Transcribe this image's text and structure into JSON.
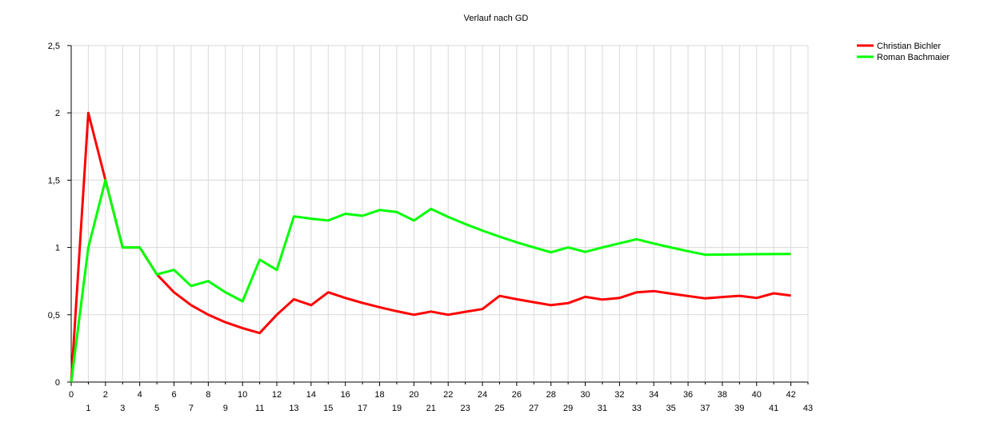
{
  "chart_data": {
    "type": "line",
    "title": "Verlauf nach GD",
    "x": [
      0,
      1,
      2,
      3,
      4,
      5,
      6,
      7,
      8,
      9,
      10,
      11,
      12,
      13,
      14,
      15,
      16,
      17,
      18,
      19,
      20,
      21,
      22,
      23,
      24,
      25,
      26,
      27,
      28,
      29,
      30,
      31,
      32,
      33,
      34,
      35,
      36,
      37,
      38,
      39,
      40,
      41,
      42
    ],
    "xlim": [
      0,
      43
    ],
    "ylim": [
      0,
      2.5
    ],
    "y_ticks": [
      "0",
      "0,5",
      "1",
      "1,5",
      "2",
      "2,5"
    ],
    "x_tick_labels": [
      "0",
      "1",
      "2",
      "3",
      "4",
      "5",
      "6",
      "7",
      "8",
      "9",
      "10",
      "11",
      "12",
      "13",
      "14",
      "15",
      "16",
      "17",
      "18",
      "19",
      "20",
      "21",
      "22",
      "23",
      "24",
      "25",
      "26",
      "27",
      "28",
      "29",
      "30",
      "31",
      "32",
      "33",
      "34",
      "35",
      "36",
      "37",
      "38",
      "39",
      "40",
      "41",
      "42",
      "43"
    ],
    "grid": true,
    "legend_position": "top-right",
    "series": [
      {
        "name": "Christian Bichler",
        "color": "#ff0000",
        "values": [
          0,
          2.0,
          1.5,
          1.0,
          1.0,
          0.8,
          0.667,
          0.571,
          0.5,
          0.444,
          0.4,
          0.364,
          0.5,
          0.615,
          0.571,
          0.667,
          0.625,
          0.588,
          0.556,
          0.526,
          0.5,
          0.524,
          0.5,
          0.522,
          0.542,
          0.64,
          0.615,
          0.593,
          0.571,
          0.586,
          0.633,
          0.613,
          0.625,
          0.667,
          0.676,
          0.657,
          0.639,
          0.622,
          0.632,
          0.641,
          0.625,
          0.659,
          0.643
        ]
      },
      {
        "name": "Roman Bachmaier",
        "color": "#00ff00",
        "values": [
          0,
          1.0,
          1.5,
          1.0,
          1.0,
          0.8,
          0.833,
          0.714,
          0.75,
          0.667,
          0.6,
          0.909,
          0.833,
          1.231,
          1.214,
          1.2,
          1.25,
          1.235,
          1.278,
          1.263,
          1.2,
          1.286,
          1.227,
          1.174,
          1.125,
          1.08,
          1.038,
          1.0,
          0.964,
          1.0,
          0.967,
          1.0,
          1.031,
          1.061,
          1.029,
          1.0,
          0.972,
          0.946,
          0.947,
          0.949,
          0.95,
          0.951,
          0.952
        ]
      }
    ]
  }
}
